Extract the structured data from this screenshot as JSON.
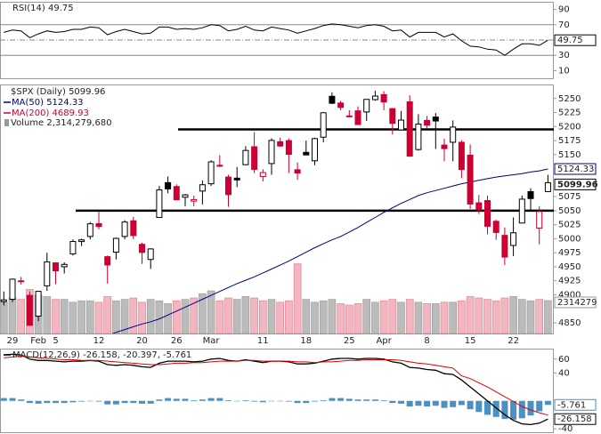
{
  "chart_data": {
    "type": "candlestick",
    "title": "$SPX (Daily)",
    "up_color": "#000000",
    "down_color": "#cc0033",
    "categories": [
      null,
      "29",
      null,
      null,
      "Feb",
      null,
      "5",
      null,
      null,
      null,
      null,
      "12",
      null,
      null,
      null,
      null,
      "20",
      null,
      null,
      null,
      "26",
      null,
      null,
      null,
      "Mar",
      null,
      null,
      null,
      null,
      null,
      "11",
      null,
      null,
      null,
      null,
      "18",
      null,
      null,
      null,
      null,
      "25",
      null,
      null,
      null,
      "Apr",
      null,
      null,
      null,
      null,
      "8",
      null,
      null,
      null,
      null,
      "15",
      null,
      null,
      null,
      null,
      "22",
      null,
      null,
      null,
      null
    ],
    "open": [
      4888,
      4892,
      4925,
      4899,
      4862,
      4916,
      4957,
      4950,
      4973,
      4995,
      5004,
      5027,
      4968,
      4976,
      5004,
      5032,
      4990,
      4963,
      5038,
      5100,
      5093,
      5074,
      5067,
      5085,
      5098,
      5130,
      5110,
      5108,
      5132,
      5164,
      5111,
      5134,
      5173,
      5175,
      5123,
      5154,
      5139,
      5181,
      5254,
      5242,
      5219,
      5228,
      5226,
      5248,
      5257,
      5232,
      5194,
      5244,
      5159,
      5211,
      5217,
      5167,
      5172,
      5172,
      5149,
      5064,
      5068,
      5031,
      5006,
      4988,
      5028,
      5084,
      5019,
      5084
    ],
    "high": [
      4906,
      4929,
      4932,
      4906,
      4907,
      4975,
      4958,
      4958,
      4999,
      5000,
      5030,
      5048,
      4970,
      5002,
      5033,
      5039,
      4993,
      4983,
      5094,
      5111,
      5097,
      5080,
      5077,
      5104,
      5140,
      5149,
      5114,
      5128,
      5165,
      5190,
      5124,
      5179,
      5180,
      5179,
      5136,
      5175,
      5180,
      5226,
      5261,
      5246,
      5229,
      5236,
      5249,
      5264,
      5263,
      5233,
      5228,
      5256,
      5222,
      5219,
      5224,
      5178,
      5211,
      5176,
      5168,
      5078,
      5077,
      5034,
      5020,
      5038,
      5077,
      5090,
      5058,
      5114
    ],
    "low": [
      4881,
      4887,
      4918,
      4845,
      4853,
      4907,
      4919,
      4938,
      4970,
      4987,
      4999,
      5017,
      4920,
      4963,
      4999,
      4999,
      4955,
      4946,
      5038,
      5081,
      5068,
      5058,
      5058,
      5061,
      5094,
      5128,
      5057,
      5092,
      5131,
      5117,
      5102,
      5114,
      5164,
      5117,
      5105,
      5149,
      5131,
      5172,
      5240,
      5229,
      5216,
      5203,
      5210,
      5246,
      5229,
      5186,
      5194,
      5146,
      5157,
      5197,
      5160,
      5138,
      5138,
      5108,
      5053,
      5044,
      5008,
      4998,
      4953,
      4969,
      5028,
      5048,
      4990,
      5084
    ],
    "close": [
      4890.97,
      4927.93,
      4924.97,
      4845.65,
      4906.19,
      4958.61,
      4942.81,
      4954.23,
      4995.06,
      4997.91,
      5026.61,
      5021.84,
      4953.17,
      5000.62,
      5029.73,
      5005.57,
      4975.51,
      4981.8,
      5087.03,
      5088.8,
      5069.53,
      5078.18,
      5069.76,
      5096.27,
      5137.08,
      5130.95,
      5078.65,
      5104.76,
      5157.36,
      5123.69,
      5117.94,
      5175.27,
      5165.31,
      5150.48,
      5117.09,
      5149.42,
      5178.51,
      5224.62,
      5241.53,
      5234.18,
      5218.19,
      5203.58,
      5248.49,
      5254.35,
      5243.77,
      5205.81,
      5211.49,
      5147.21,
      5204.34,
      5202.39,
      5209.91,
      5160.64,
      5199.06,
      5123.41,
      5061.82,
      5051.41,
      5022.21,
      5011.12,
      4967.23,
      5010.6,
      5070.55,
      5071.63,
      5048.42,
      5099.96
    ],
    "ylim": [
      4831,
      5275
    ],
    "yticks": [
      5250,
      5225,
      5200,
      5175,
      5150,
      5075,
      5050,
      5025,
      5000,
      4975,
      4950,
      4925,
      4900,
      4850
    ],
    "hlines": [
      5195,
      5050
    ],
    "ma50": {
      "name": "MA(50)",
      "color": "#000080",
      "values": [
        4762,
        4768,
        4773,
        4778,
        4783,
        4788,
        4794,
        4799,
        4805,
        4810,
        4816,
        4821,
        4827,
        4833,
        4838,
        4843,
        4848,
        4852,
        4857,
        4864,
        4871,
        4878,
        4885,
        4892,
        4899,
        4906,
        4913,
        4920,
        4926,
        4932,
        4939,
        4946,
        4953,
        4960,
        4968,
        4976,
        4984,
        4991,
        4998,
        5004,
        5012,
        5020,
        5029,
        5038,
        5047,
        5055,
        5063,
        5070,
        5077,
        5082,
        5086,
        5090,
        5094,
        5098,
        5101,
        5104,
        5107,
        5110,
        5112,
        5114,
        5116,
        5119,
        5121,
        5124.33
      ]
    },
    "ma200": {
      "name": "MA(200)",
      "color": "#cc0033",
      "value": 4689.93
    },
    "volume": {
      "name": "Volume",
      "up_color": "#bbbbbb",
      "down_color": "#f2b6c0",
      "lim": [
        0,
        17500000000
      ],
      "value_label": "2,314,279,680",
      "tag_label": "2314279",
      "values": [
        2200000000,
        2500000000,
        2400000000,
        3100000000,
        2700000000,
        2600000000,
        2400000000,
        2400000000,
        2200000000,
        2300000000,
        2300000000,
        2200000000,
        2600000000,
        2300000000,
        2400000000,
        2500000000,
        2200000000,
        2400000000,
        2300000000,
        2100000000,
        2300000000,
        2400000000,
        2500000000,
        2800000000,
        3000000000,
        2300000000,
        2500000000,
        2400000000,
        2600000000,
        2500000000,
        2300000000,
        2400000000,
        2200000000,
        2300000000,
        4900000000,
        2400000000,
        2200000000,
        2300000000,
        2400000000,
        2100000000,
        2000000000,
        2100000000,
        2400000000,
        2200000000,
        2300000000,
        2400000000,
        2200000000,
        2400000000,
        2200000000,
        2100000000,
        2100000000,
        2200000000,
        2200000000,
        2300000000,
        2600000000,
        2500000000,
        2400000000,
        2300000000,
        2500000000,
        2600000000,
        2400000000,
        2300000000,
        2400000000,
        2314279680
      ]
    },
    "rsi": {
      "name": "RSI(14)",
      "color": "#000000",
      "ylim": [
        0,
        100
      ],
      "yticks": [
        90,
        70,
        30,
        10
      ],
      "ref_lines": [
        70,
        50,
        30
      ],
      "values": [
        60,
        63,
        62,
        53,
        58,
        62,
        60,
        61,
        64,
        64,
        67,
        66,
        57,
        61,
        64,
        61,
        58,
        59,
        67,
        67,
        64,
        65,
        64,
        66,
        70,
        69,
        62,
        64,
        68,
        63,
        62,
        67,
        65,
        63,
        59,
        62,
        65,
        69,
        71,
        70,
        68,
        66,
        69,
        70,
        68,
        62,
        63,
        54,
        60,
        60,
        60,
        54,
        58,
        49,
        42,
        41,
        38,
        37,
        30,
        38,
        45,
        45,
        43,
        49.75
      ]
    },
    "macd": {
      "name": "MACD(12,26,9)",
      "values_label": "-26.158, -20.397, -5.761",
      "ylim": [
        -45,
        75
      ],
      "yticks": [
        60,
        40,
        -40
      ],
      "macd_color": "#000000",
      "signal_color": "#dd0000",
      "histogram_color": "#4a90c2",
      "macd": [
        66,
        67,
        66,
        60,
        58,
        58,
        57,
        56,
        57,
        57,
        58,
        57,
        52,
        51,
        52,
        51,
        49,
        48,
        54,
        57,
        57,
        57,
        56,
        57,
        60,
        61,
        58,
        57,
        59,
        57,
        55,
        57,
        57,
        56,
        53,
        53,
        54,
        57,
        60,
        61,
        61,
        60,
        61,
        61,
        60,
        56,
        54,
        48,
        47,
        45,
        44,
        39,
        38,
        30,
        20,
        10,
        0,
        -10,
        -20,
        -28,
        -33,
        -34,
        -32,
        -26.158
      ],
      "signal": [
        62,
        63,
        64,
        63,
        62,
        61,
        60,
        59,
        59,
        58,
        58,
        58,
        57,
        56,
        55,
        54,
        53,
        52,
        52,
        53,
        54,
        54,
        55,
        55,
        56,
        57,
        57,
        57,
        58,
        58,
        57,
        57,
        57,
        57,
        56,
        56,
        55,
        56,
        56,
        57,
        58,
        58,
        59,
        59,
        59,
        59,
        58,
        56,
        54,
        53,
        51,
        49,
        47,
        36,
        32,
        26,
        20,
        13,
        6,
        -1,
        -8,
        -13,
        -17,
        -20.397
      ],
      "histogram": [
        4,
        4,
        2,
        -3,
        -4,
        -3,
        -3,
        -3,
        -2,
        -1,
        0,
        -1,
        -5,
        -5,
        -3,
        -3,
        -4,
        -4,
        2,
        4,
        3,
        3,
        1,
        2,
        4,
        4,
        1,
        0,
        1,
        -1,
        -2,
        0,
        0,
        -1,
        -3,
        -3,
        -1,
        1,
        4,
        4,
        3,
        2,
        2,
        2,
        1,
        -3,
        -4,
        -8,
        -7,
        -8,
        -7,
        -10,
        -9,
        -6,
        -12,
        -16,
        -20,
        -23,
        -26,
        -27,
        -25,
        -21,
        -15,
        -5.761
      ]
    }
  }
}
